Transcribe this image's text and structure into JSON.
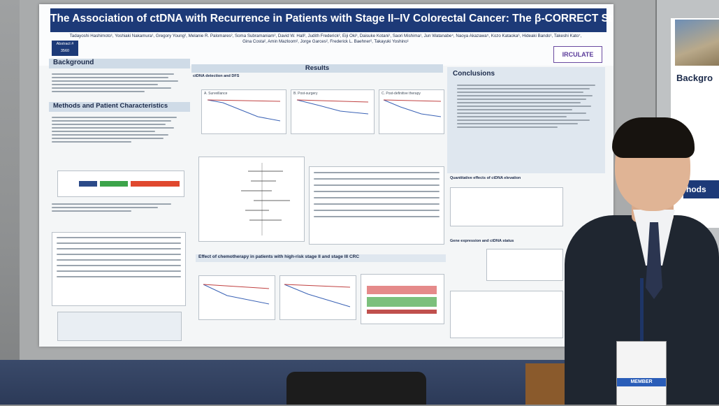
{
  "poster": {
    "title": "The Association of ctDNA with Recurrence in Patients with Stage II–IV Colorectal Cancer: The β-CORRECT Study",
    "abstract_label": "Abstract #",
    "abstract_number": "3560",
    "logo": "IRCULATE",
    "authors": "Tadayoshi Hashimoto¹, Yoshiaki Nakamura¹, Gregory Young², Melanie R. Palomares², Soma Subramaniam², David W. Hall², Judith Frederick², Eiji Oki³, Daisuke Kotani¹, Saori Mishima¹, Jun Watanabe⁴, Naoya Akazawa⁵, Kozo Kataoka⁶, Hideaki Bando¹, Takeshi Kato⁷, Gina Costa², Amin Mazloom², Jorge Garces², Frederick L. Baehner², Takayuki Yoshino¹",
    "sections": {
      "background": "Background",
      "methods": "Methods and Patient Characteristics",
      "results": "Results",
      "conclusions": "Conclusions",
      "ctdna_dfs": "ctDNA detection and DFS",
      "chemo_effect": "Effect of chemotherapy in patients with high-risk stage II and stage III CRC",
      "quant_effects": "Quantitative effects of ctDNA elevation",
      "gene_expr": "Gene expression and ctDNA status"
    },
    "plot_labels": {
      "a": "A. Surveillance",
      "b": "B. Post-surgery",
      "c": "C. Post-definitive therapy"
    }
  },
  "booth": {
    "right_sign_head_1": "Backgro",
    "right_sign_head_2": "hods",
    "badge_band": "MEMBER"
  }
}
